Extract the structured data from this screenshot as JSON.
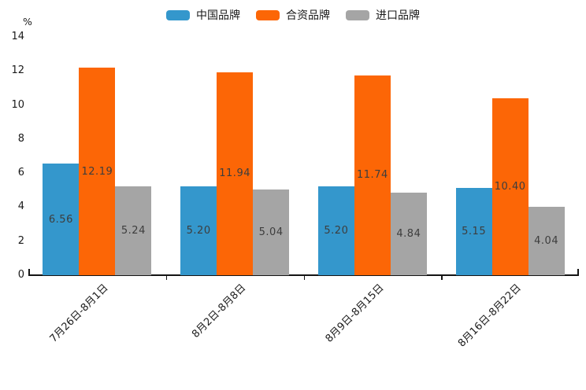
{
  "chart_data": {
    "type": "bar",
    "title": "",
    "ylabel": "%",
    "xlabel": "",
    "ylim": [
      0,
      14
    ],
    "yticks": [
      0,
      2,
      4,
      6,
      8,
      10,
      12,
      14
    ],
    "grid": false,
    "legend_position": "top-center",
    "categories": [
      "7月26日-8月1日",
      "8月2日-8月8日",
      "8月9日-8月15日",
      "8月16日-8月22日"
    ],
    "series": [
      {
        "name": "中国品牌",
        "color": "#3497CC",
        "values": [
          6.56,
          5.2,
          5.2,
          5.15
        ]
      },
      {
        "name": "合资品牌",
        "color": "#FC6606",
        "values": [
          12.19,
          11.94,
          11.74,
          10.4
        ]
      },
      {
        "name": "进口品牌",
        "color": "#A5A5A5",
        "values": [
          5.24,
          5.04,
          4.84,
          4.04
        ]
      }
    ],
    "value_label_format": "2-decimals",
    "axis_color": "#141414",
    "value_label_color": "#3d3d3d"
  }
}
